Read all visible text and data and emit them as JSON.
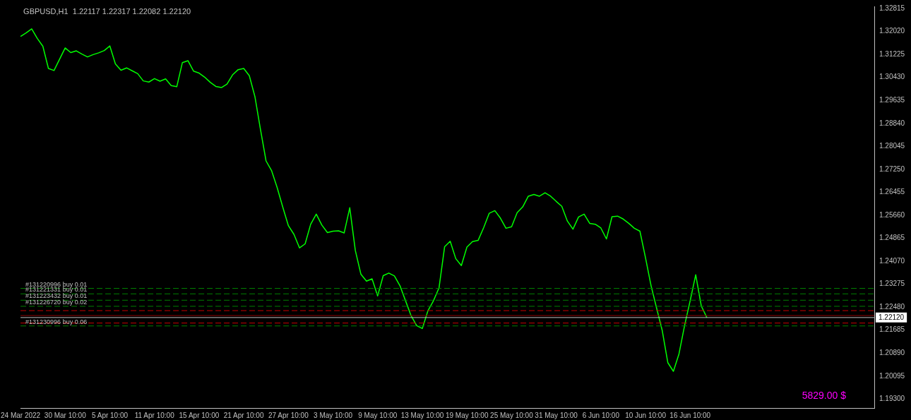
{
  "chart_data": {
    "type": "line",
    "title": "GBPUSD,H1  1.22117 1.22317 1.22082 1.22120",
    "marker": "none",
    "line_style": "solid",
    "legend": false,
    "grid": false,
    "categories": [
      "24 Mar 2022",
      null,
      null,
      null,
      null,
      null,
      null,
      null,
      "30 Mar 10:00",
      null,
      null,
      null,
      null,
      null,
      null,
      null,
      "5 Apr 10:00",
      null,
      null,
      null,
      null,
      null,
      null,
      null,
      "11 Apr 10:00",
      null,
      null,
      null,
      null,
      null,
      null,
      null,
      "15 Apr 10:00",
      null,
      null,
      null,
      null,
      null,
      null,
      null,
      "21 Apr 10:00",
      null,
      null,
      null,
      null,
      null,
      null,
      null,
      "27 Apr 10:00",
      null,
      null,
      null,
      null,
      null,
      null,
      null,
      "3 May 10:00",
      null,
      null,
      null,
      null,
      null,
      null,
      null,
      "9 May 10:00",
      null,
      null,
      null,
      null,
      null,
      null,
      null,
      "13 May 10:00",
      null,
      null,
      null,
      null,
      null,
      null,
      null,
      "19 May 10:00",
      null,
      null,
      null,
      null,
      null,
      null,
      null,
      "25 May 10:00",
      null,
      null,
      null,
      null,
      null,
      null,
      null,
      "31 May 10:00",
      null,
      null,
      null,
      null,
      null,
      null,
      null,
      "6 Jun 10:00",
      null,
      null,
      null,
      null,
      null,
      null,
      null,
      "10 Jun 10:00",
      null,
      null,
      null,
      null,
      null,
      null,
      null,
      "16 Jun 10:00",
      null,
      null,
      null,
      null,
      null,
      null,
      null,
      null,
      null,
      null,
      null,
      null,
      null,
      null,
      null,
      null,
      null,
      null,
      null,
      null,
      null,
      null,
      null,
      null,
      null,
      null,
      null,
      null,
      null,
      null,
      null,
      null,
      null
    ],
    "series": [
      {
        "color": "#00ff00",
        "values": [
          1.3185,
          1.3197,
          1.3211,
          1.3178,
          1.3151,
          1.3074,
          1.3067,
          1.3106,
          1.3145,
          1.3129,
          1.3135,
          1.3124,
          1.3114,
          1.3122,
          1.3128,
          1.3136,
          1.3152,
          1.309,
          1.3068,
          1.3076,
          1.3066,
          1.3056,
          1.3031,
          1.3027,
          1.3039,
          1.303,
          1.3038,
          1.3015,
          1.3011,
          1.3094,
          1.3101,
          1.3065,
          1.3058,
          1.3044,
          1.3026,
          1.3012,
          1.3008,
          1.302,
          1.3052,
          1.307,
          1.3074,
          1.3049,
          1.2977,
          1.2863,
          1.2754,
          1.272,
          1.2661,
          1.2594,
          1.253,
          1.25,
          1.2453,
          1.2467,
          1.2535,
          1.257,
          1.2532,
          1.2506,
          1.2511,
          1.2512,
          1.2505,
          1.2592,
          1.2444,
          1.2362,
          1.2338,
          1.2346,
          1.2287,
          1.2357,
          1.2366,
          1.2356,
          1.2322,
          1.227,
          1.2218,
          1.2184,
          1.2174,
          1.2235,
          1.227,
          1.2315,
          1.2457,
          1.2476,
          1.2416,
          1.2392,
          1.2456,
          1.2475,
          1.2479,
          1.2523,
          1.2573,
          1.2582,
          1.2556,
          1.2521,
          1.2526,
          1.2575,
          1.2595,
          1.2632,
          1.2638,
          1.2632,
          1.2644,
          1.2632,
          1.2614,
          1.2597,
          1.2546,
          1.2518,
          1.256,
          1.257,
          1.2538,
          1.2535,
          1.2522,
          1.2484,
          1.2561,
          1.2563,
          1.2553,
          1.2538,
          1.2521,
          1.2511,
          1.2419,
          1.2322,
          1.2244,
          1.2167,
          1.2056,
          1.2026,
          1.2086,
          1.2184,
          1.227,
          1.236,
          1.2252,
          1.2212,
          null,
          null,
          null,
          null,
          null,
          null,
          null,
          null,
          null,
          null,
          null,
          null,
          null,
          null,
          null,
          null,
          null,
          null,
          null,
          null,
          null,
          null,
          null,
          null,
          null,
          null,
          null,
          null,
          null,
          null
        ]
      }
    ],
    "ylim": [
      1.1899,
      1.3289
    ],
    "yticks": [
      1.32815,
      {
        "value": 1.3202,
        "label": "1.32020"
      },
      1.31225,
      {
        "value": 1.3043,
        "label": "1.30430"
      },
      1.29635,
      {
        "value": 1.2884,
        "label": "1.28840"
      },
      1.28045,
      {
        "value": 1.2725,
        "label": "1.27250"
      },
      1.26455,
      {
        "value": 1.2566,
        "label": "1.25660"
      },
      1.24865,
      {
        "value": 1.2407,
        "label": "1.24070"
      },
      1.23275,
      {
        "value": 1.2248,
        "label": "1.22480"
      },
      1.21685,
      {
        "value": 1.2089,
        "label": "1.20890"
      },
      1.20095,
      {
        "value": 1.193,
        "label": "1.19300"
      }
    ],
    "ref_lines": [
      {
        "axis": "y",
        "value": 1.2313,
        "label": "#131220996 buy 0.01",
        "color": "#008000",
        "line_style": "dashed"
      },
      {
        "axis": "y",
        "value": 1.2294,
        "label": "#131221331 buy 0.01",
        "color": "#008000",
        "line_style": "dashed"
      },
      {
        "axis": "y",
        "value": 1.2272,
        "label": "#131223432 buy 0.01",
        "color": "#008000",
        "line_style": "dashed"
      },
      {
        "axis": "y",
        "value": 1.2251,
        "label": "#131226720 buy 0.02",
        "color": "#008000",
        "line_style": "dashed"
      },
      {
        "axis": "y",
        "value": 1.2236,
        "color": "#cc0000",
        "line_style": "dashed"
      },
      {
        "axis": "y",
        "value": 1.2219,
        "color": "#8b0000",
        "line_style": "solid"
      },
      {
        "axis": "y",
        "value": 1.2212,
        "label": "1.22120",
        "color": "#c0c0c0",
        "line_style": "solid"
      },
      {
        "axis": "y",
        "value": 1.2193,
        "color": "#cc0000",
        "line_style": "dashed"
      },
      {
        "axis": "y",
        "value": 1.2183,
        "label": "#131230996 buy 0.06",
        "color": "#008000",
        "line_style": "dashed"
      }
    ],
    "annotations": [
      "5829.00 $"
    ]
  }
}
